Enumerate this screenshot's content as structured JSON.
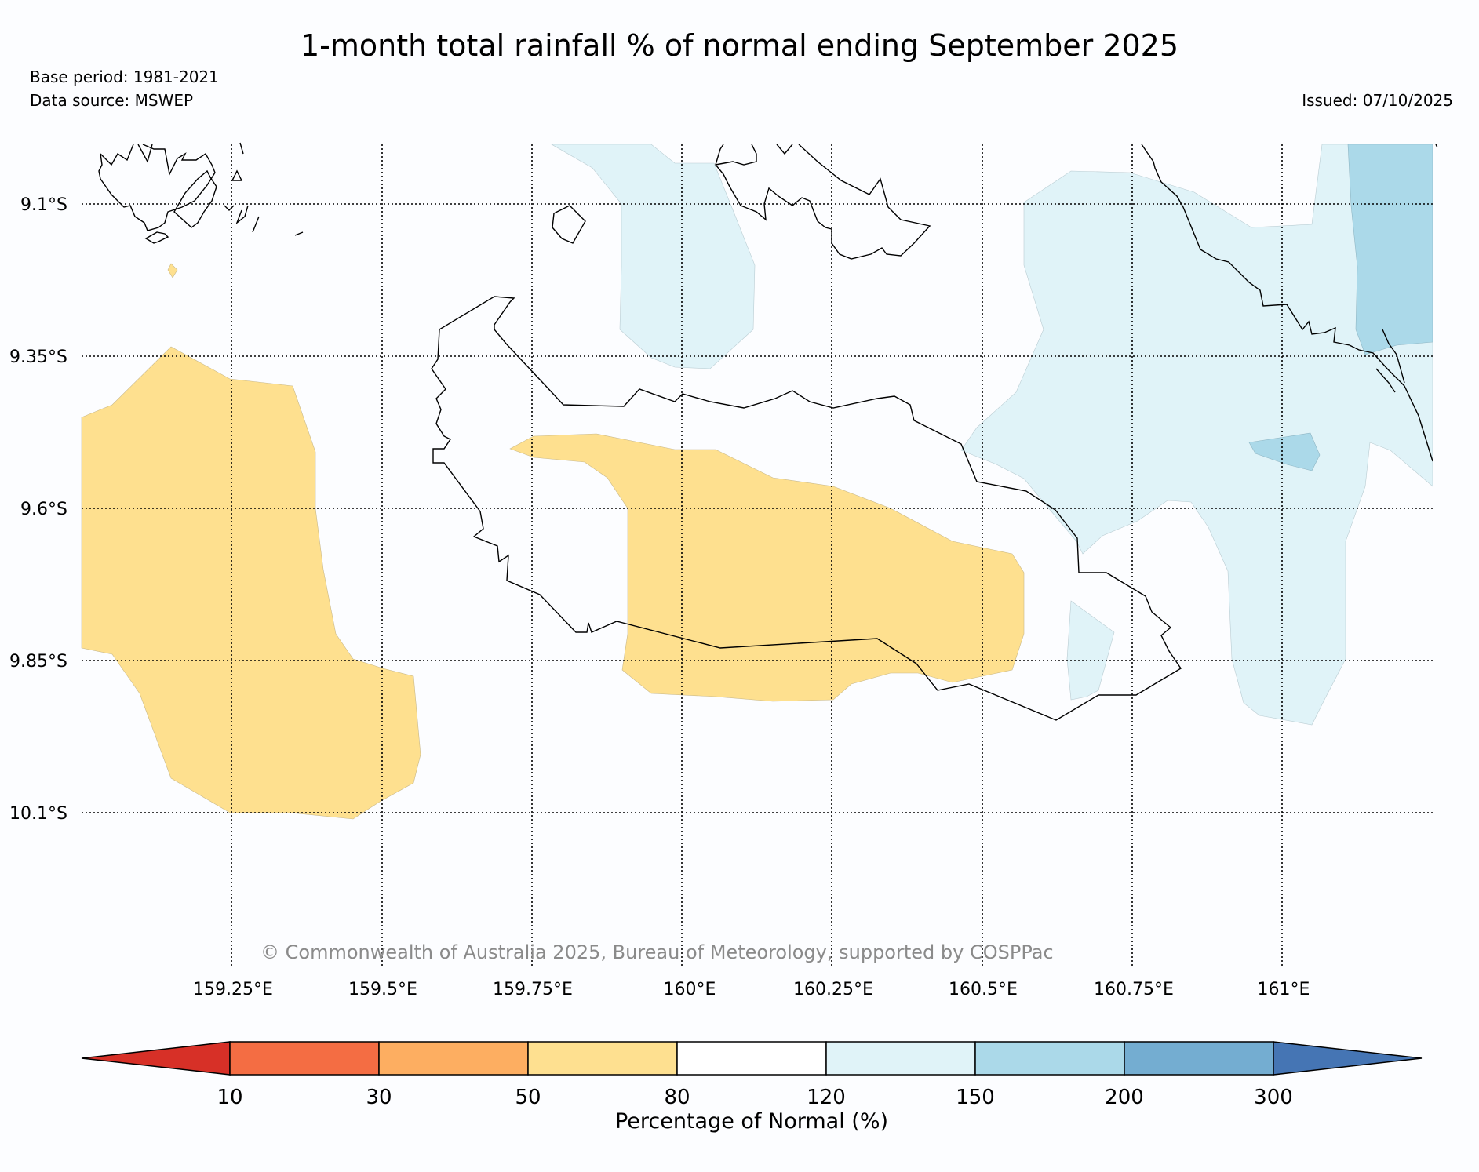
{
  "title": "1-month total rainfall % of normal ending September 2025",
  "base_period": "Base period: 1981-2021",
  "data_source": "Data source: MSWEP",
  "issued": "Issued: 07/10/2025",
  "copyright": "© Commonwealth of Australia 2025, Bureau of Meteorology, supported by COSPPac",
  "map": {
    "lat_labels": [
      "9.1°S",
      "9.35°S",
      "9.6°S",
      "9.85°S",
      "10.1°S"
    ],
    "lon_labels": [
      "159.25°E",
      "159.5°E",
      "159.75°E",
      "160°E",
      "160.25°E",
      "160.5°E",
      "160.75°E",
      "161°E"
    ],
    "category_colors": {
      "50-80": "#fee08f",
      "120-150": "#e0f3f8",
      "150-200": "#abd9e9"
    }
  },
  "colorbar": {
    "title": "Percentage of Normal (%)",
    "ticks": [
      "10",
      "30",
      "50",
      "80",
      "120",
      "150",
      "200",
      "300"
    ],
    "colors": [
      "#d73027",
      "#f46d43",
      "#fdae61",
      "#fee090",
      "#ffffff",
      "#e0f3f8",
      "#abd9e9",
      "#74add1",
      "#4575b4"
    ]
  }
}
